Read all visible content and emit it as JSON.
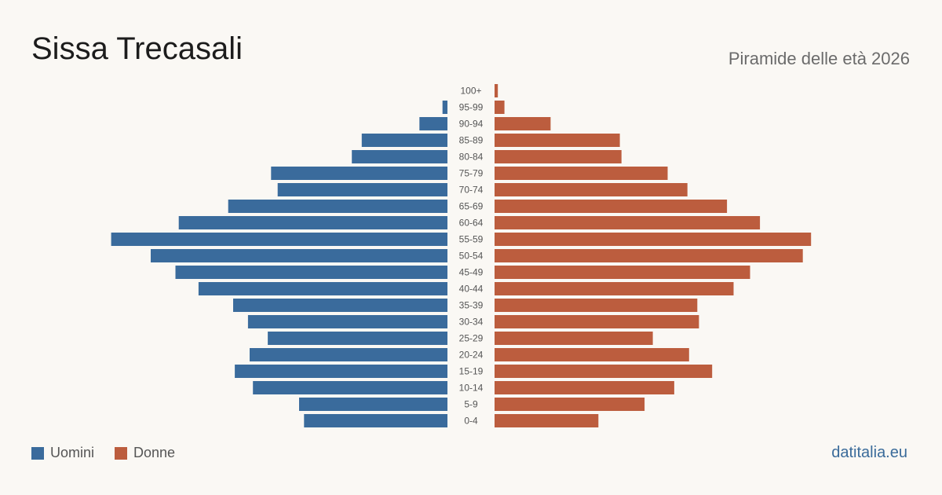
{
  "title": "Sissa Trecasali",
  "subtitle": "Piramide delle età 2026",
  "brand": "datitalia.eu",
  "colors": {
    "male": "#3a6b9c",
    "female": "#bc5d3e",
    "age_label": "#555555"
  },
  "chart_data": {
    "type": "bar",
    "orientation": "horizontal-pyramid",
    "categories": [
      "100+",
      "95-99",
      "90-94",
      "85-89",
      "80-84",
      "75-79",
      "70-74",
      "65-69",
      "60-64",
      "55-59",
      "50-54",
      "45-49",
      "40-44",
      "35-39",
      "30-34",
      "25-29",
      "20-24",
      "15-19",
      "10-14",
      "5-9",
      "0-4"
    ],
    "series": [
      {
        "name": "Uomini",
        "side": "left",
        "values": [
          0,
          3,
          17,
          52,
          58,
          107,
          103,
          133,
          163,
          204,
          180,
          165,
          151,
          130,
          121,
          109,
          120,
          129,
          118,
          90,
          87
        ]
      },
      {
        "name": "Donne",
        "side": "right",
        "values": [
          2,
          6,
          34,
          76,
          77,
          105,
          117,
          141,
          161,
          192,
          187,
          155,
          145,
          123,
          124,
          96,
          118,
          132,
          109,
          91,
          63
        ]
      }
    ],
    "legend": {
      "position": "bottom-left",
      "entries": [
        "Uomini",
        "Donne"
      ]
    }
  }
}
